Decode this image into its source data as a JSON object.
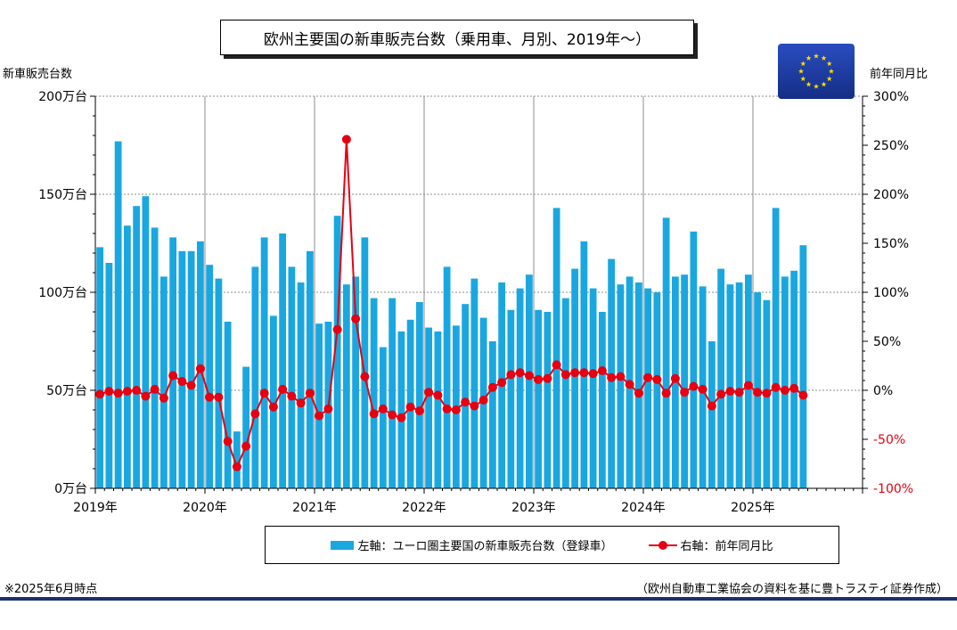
{
  "header": {
    "title": "欧州主要国の新車販売台数（乗用車、月別、2019年～）"
  },
  "axes": {
    "left_title": "新車販売台数",
    "right_title": "前年同月比"
  },
  "legend": {
    "bar_label": "左軸：ユーロ圏主要国の新車販売台数（登録車）",
    "line_label": "右軸：前年同月比"
  },
  "footer": {
    "note_left": "※2025年6月時点",
    "note_right": "（欧州自動車工業協会の資料を基に豊トラスティ証券作成）"
  },
  "flag": {
    "icon": "eu-flag-icon",
    "field_color": "#1a3a9c",
    "star_color": "#ffdd00"
  },
  "colors": {
    "bar": "#1aa7e0",
    "line": "#e60012",
    "negative_tick": "#e60012"
  },
  "chart_data": {
    "type": "bar+line",
    "x_labels": [
      "2019年",
      "2020年",
      "2021年",
      "2022年",
      "2023年",
      "2024年",
      "2025年"
    ],
    "y_left": {
      "range": [
        0,
        200
      ],
      "ticks": [
        0,
        50,
        100,
        150,
        200
      ],
      "tick_labels": [
        "0万台",
        "50万台",
        "100万台",
        "150万台",
        "200万台"
      ]
    },
    "y_right": {
      "range": [
        -100,
        300
      ],
      "ticks": [
        -100,
        -50,
        0,
        50,
        100,
        150,
        200,
        250,
        300
      ],
      "tick_labels": [
        "-100%",
        "-50%",
        "0%",
        "50%",
        "100%",
        "150%",
        "200%",
        "250%",
        "300%"
      ]
    },
    "grid": true,
    "series": [
      {
        "name": "左軸：ユーロ圏主要国の新車販売台数（登録車）",
        "type": "bar",
        "axis": "left",
        "values": [
          123,
          115,
          177,
          134,
          144,
          149,
          133,
          108,
          128,
          121,
          121,
          126,
          114,
          107,
          85,
          29,
          62,
          113,
          128,
          88,
          130,
          113,
          105,
          121,
          84,
          85,
          139,
          104,
          108,
          128,
          97,
          72,
          97,
          80,
          86,
          95,
          82,
          80,
          113,
          83,
          94,
          107,
          87,
          75,
          105,
          91,
          102,
          109,
          91,
          90,
          143,
          97,
          112,
          126,
          102,
          90,
          117,
          104,
          108,
          105,
          102,
          100,
          138,
          108,
          109,
          131,
          103,
          75,
          112,
          104,
          105,
          109,
          100,
          96,
          143,
          108,
          111,
          124
        ]
      },
      {
        "name": "右軸：前年同月比",
        "type": "line",
        "axis": "right",
        "values": [
          -4,
          -1,
          -3,
          -1,
          0,
          -6,
          1,
          -8,
          15,
          9,
          5,
          22,
          -7,
          -7,
          -52,
          -78,
          -57,
          -24,
          -3,
          -17,
          1,
          -6,
          -13,
          -3,
          -26,
          -19,
          62,
          256,
          73,
          14,
          -24,
          -19,
          -25,
          -28,
          -17,
          -21,
          -2,
          -5,
          -19,
          -20,
          -12,
          -16,
          -10,
          3,
          8,
          16,
          18,
          15,
          11,
          12,
          26,
          16,
          18,
          18,
          17,
          20,
          13,
          14,
          6,
          -3,
          13,
          11,
          -3,
          12,
          -2,
          4,
          1,
          -16,
          -4,
          -1,
          -2,
          5,
          -2,
          -3,
          3,
          0,
          2,
          -5
        ]
      }
    ]
  }
}
